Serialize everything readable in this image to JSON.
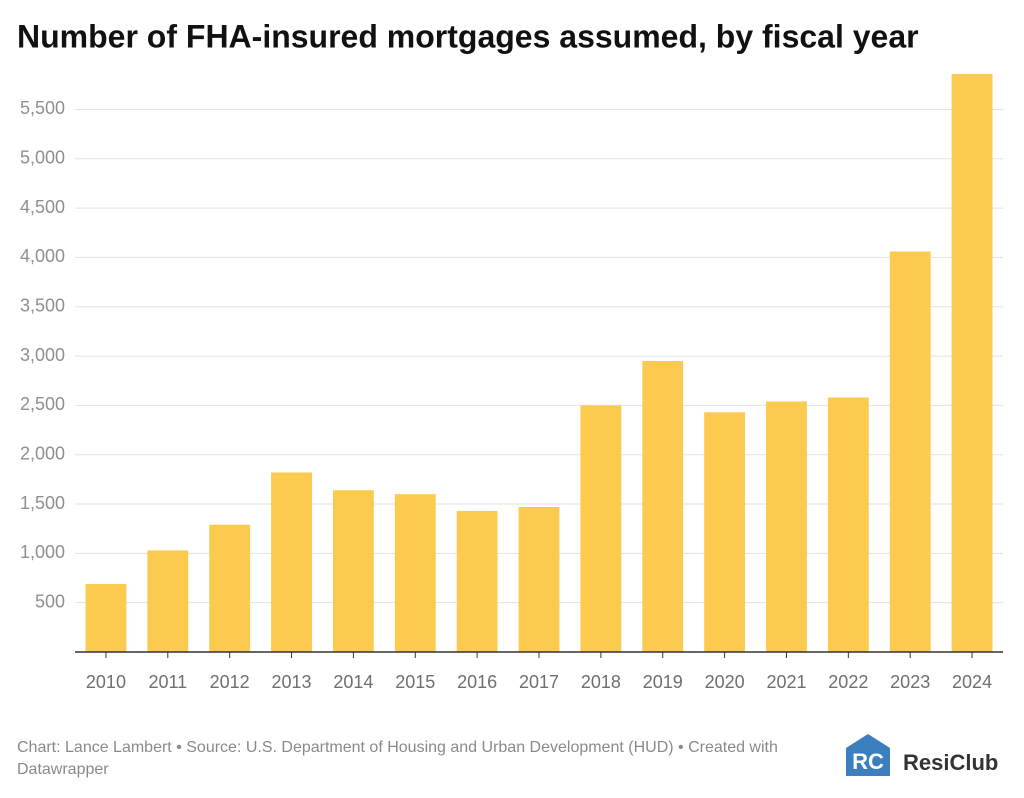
{
  "chart_data": {
    "type": "bar",
    "title": "Number of FHA-insured mortgages assumed, by fiscal year",
    "categories": [
      "2010",
      "2011",
      "2012",
      "2013",
      "2014",
      "2015",
      "2016",
      "2017",
      "2018",
      "2019",
      "2020",
      "2021",
      "2022",
      "2023",
      "2024"
    ],
    "values": [
      690,
      1030,
      1290,
      1820,
      1640,
      1600,
      1430,
      1470,
      2500,
      2950,
      2430,
      2540,
      2580,
      4060,
      5860
    ],
    "color": "#fcca4f",
    "ylim": [
      0,
      5900
    ],
    "yticks": [
      500,
      {
        "value": 1000,
        "label": "1,000"
      },
      {
        "value": 1500,
        "label": "1,500"
      },
      {
        "value": 2000,
        "label": "2,000"
      },
      {
        "value": 2500,
        "label": "2,500"
      },
      {
        "value": 3000,
        "label": "3,000"
      },
      {
        "value": 3500,
        "label": "3,500"
      },
      {
        "value": 4000,
        "label": "4,000"
      },
      {
        "value": 4500,
        "label": "4,500"
      },
      {
        "value": 5000,
        "label": "5,000"
      },
      {
        "value": 5500,
        "label": "5,500"
      }
    ],
    "grid": true,
    "footer": "Chart: Lance Lambert • Source: U.S. Department of Housing and Urban Development (HUD) • Created with Datawrapper",
    "logo": "ResiClub"
  }
}
